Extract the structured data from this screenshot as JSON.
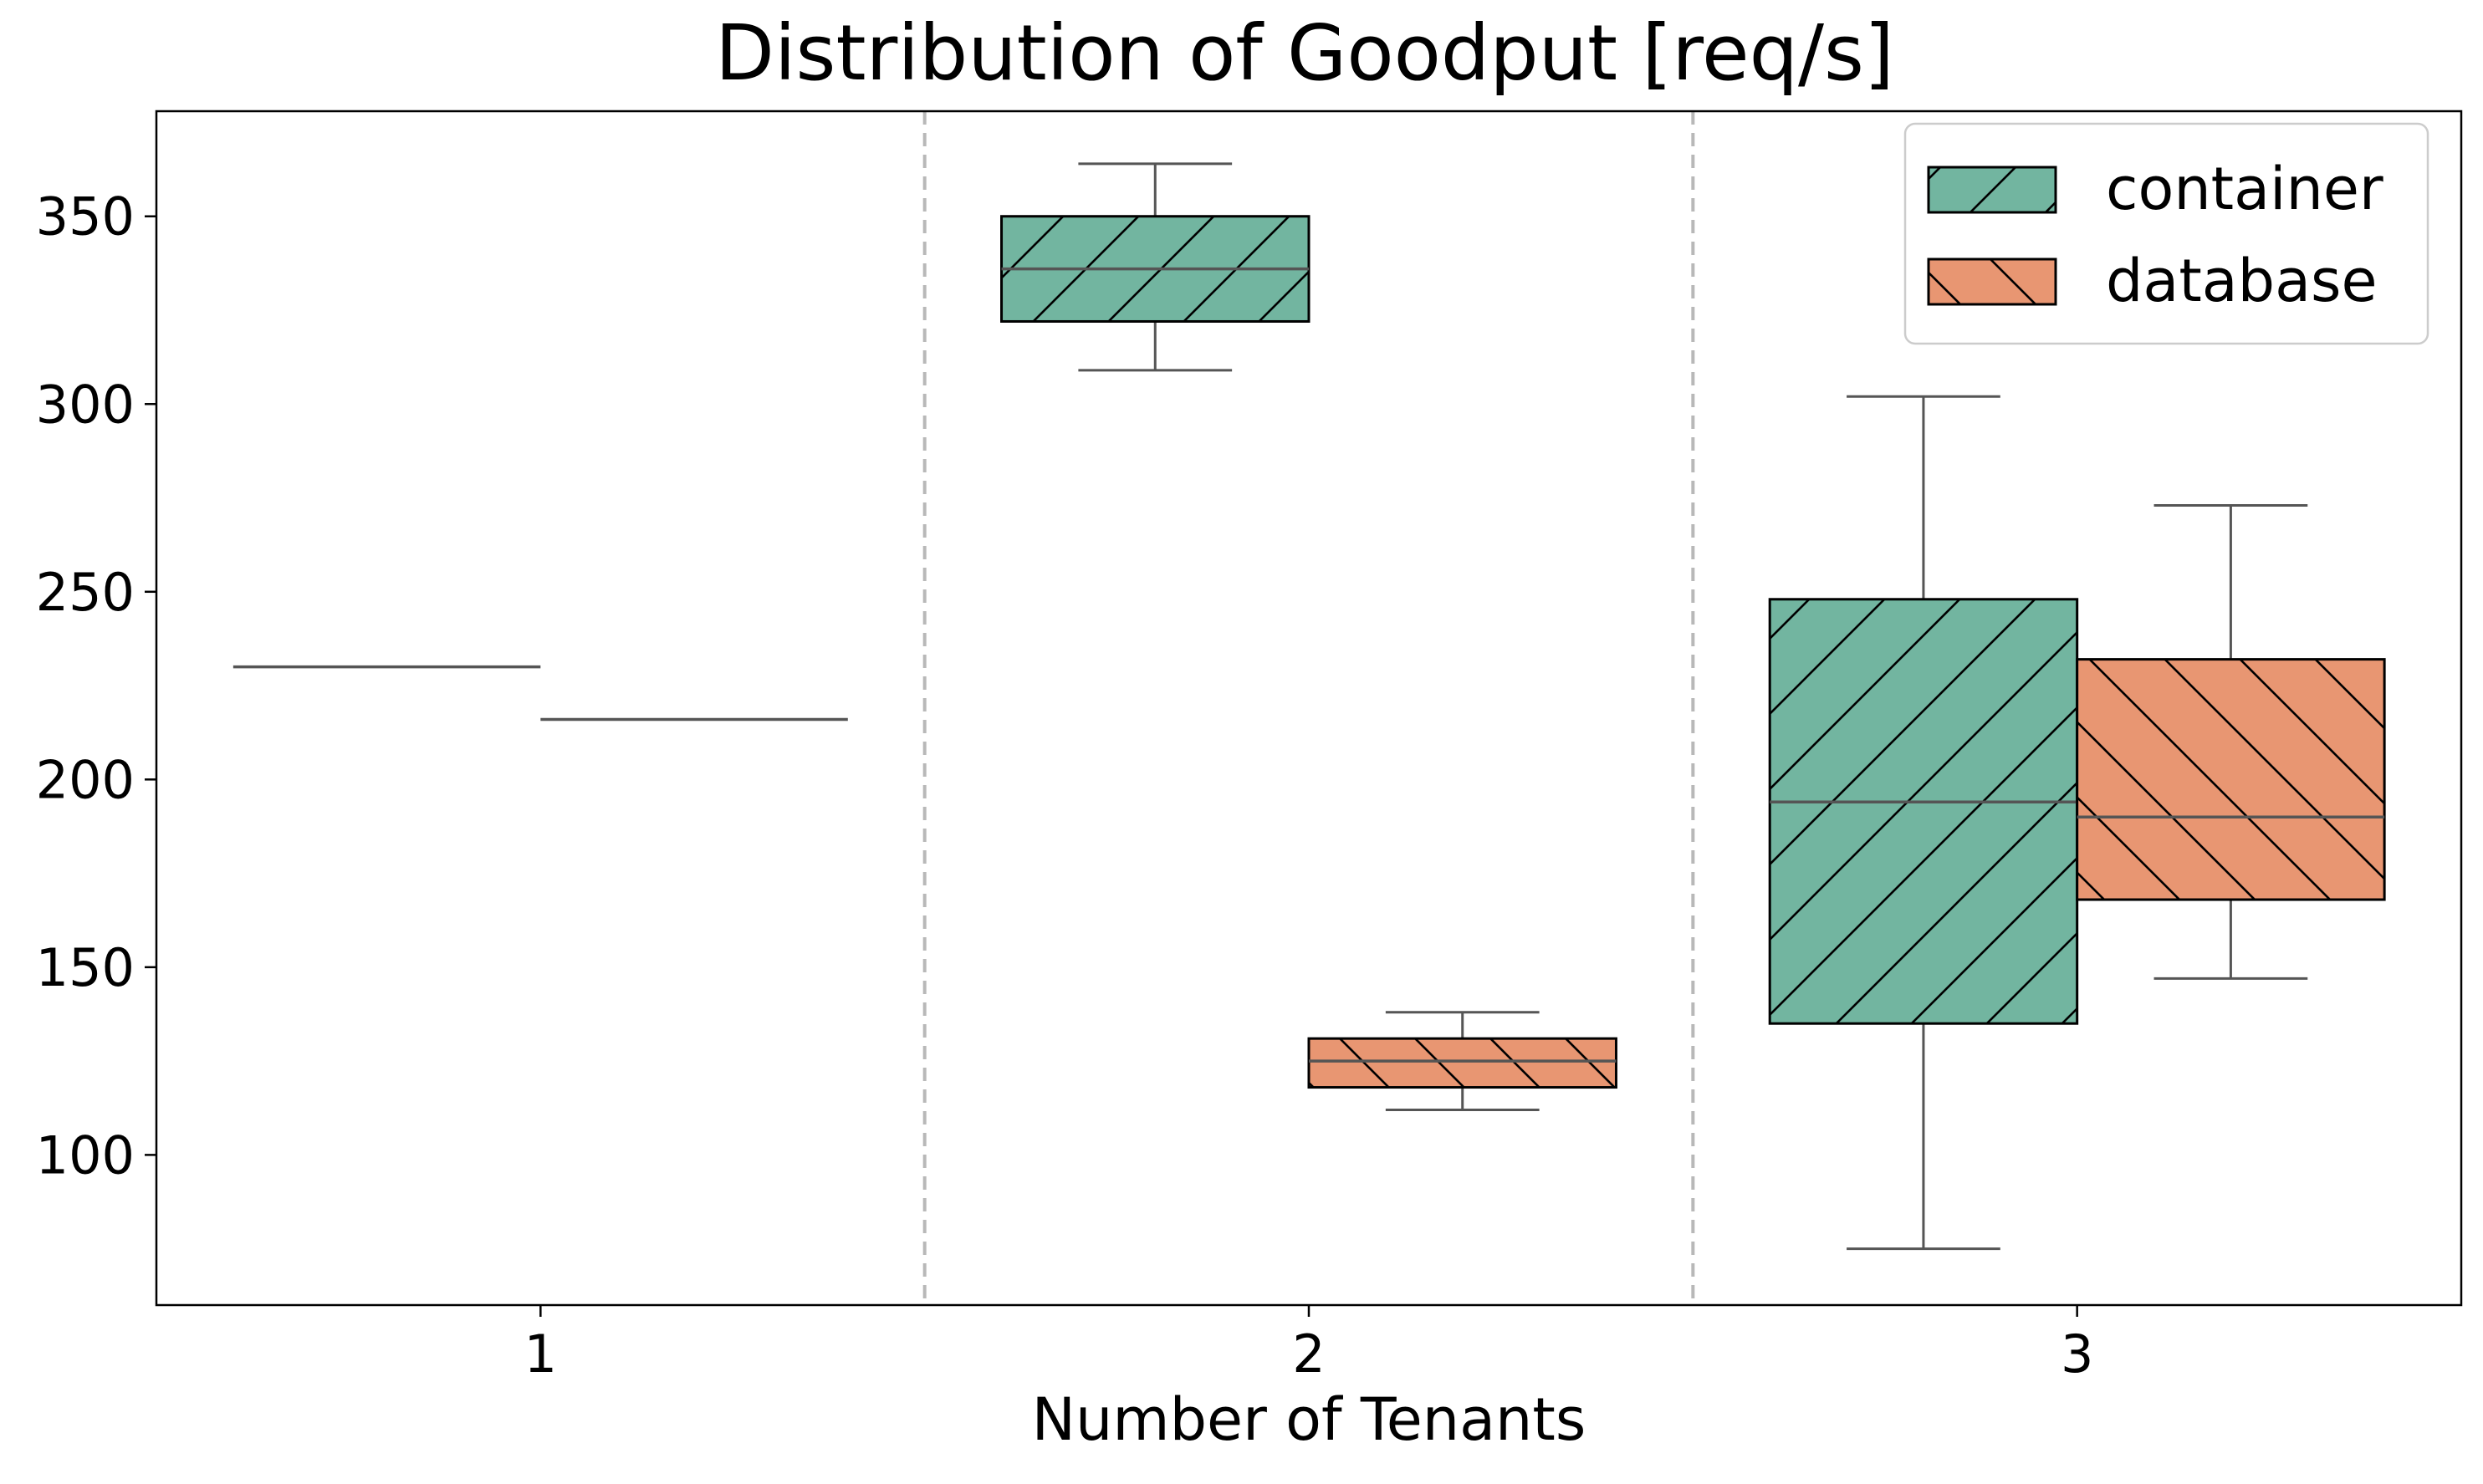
{
  "chart_data": {
    "type": "box",
    "title": "Distribution of Goodput [req/s]",
    "xlabel": "Number of Tenants",
    "ylabel": "",
    "categories": [
      "1",
      "2",
      "3"
    ],
    "yticks": [
      100,
      150,
      200,
      250,
      300,
      350
    ],
    "ylim": [
      60,
      378
    ],
    "grid": false,
    "legend": {
      "position": "top-right"
    },
    "category_separators": true,
    "series": [
      {
        "name": "container",
        "color": "#72b5a0",
        "hatch": "forward-diagonal",
        "boxes": [
          {
            "category": "1",
            "whisker_low": 230,
            "q1": 230,
            "median": 230,
            "q3": 230,
            "whisker_high": 230
          },
          {
            "category": "2",
            "whisker_low": 309,
            "q1": 322,
            "median": 336,
            "q3": 350,
            "whisker_high": 364
          },
          {
            "category": "3",
            "whisker_low": 75,
            "q1": 135,
            "median": 194,
            "q3": 248,
            "whisker_high": 302
          }
        ]
      },
      {
        "name": "database",
        "color": "#e89672",
        "hatch": "back-diagonal",
        "boxes": [
          {
            "category": "1",
            "whisker_low": 216,
            "q1": 216,
            "median": 216,
            "q3": 216,
            "whisker_high": 216
          },
          {
            "category": "2",
            "whisker_low": 112,
            "q1": 118,
            "median": 125,
            "q3": 131,
            "whisker_high": 138
          },
          {
            "category": "3",
            "whisker_low": 147,
            "q1": 168,
            "median": 190,
            "q3": 232,
            "whisker_high": 273
          }
        ]
      }
    ]
  }
}
